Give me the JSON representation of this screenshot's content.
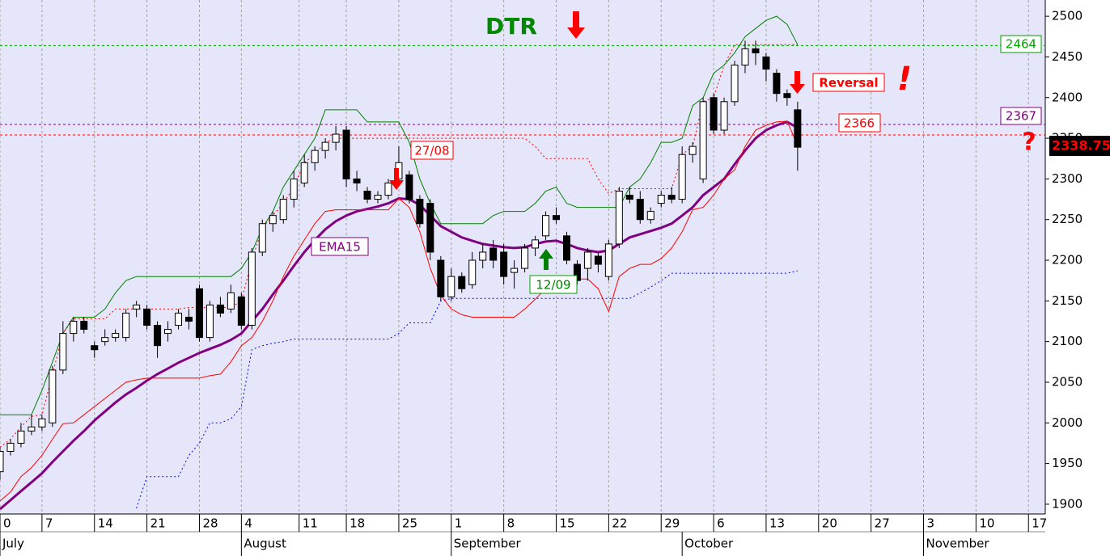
{
  "chart_data": {
    "type": "candlestick",
    "ylim": [
      1888,
      2520
    ],
    "yticks": [
      1900,
      1950,
      2000,
      2050,
      2100,
      2150,
      2200,
      2250,
      2300,
      2350,
      2400,
      2450,
      2500
    ],
    "xlim": [
      0,
      99.6
    ],
    "xticks": [
      {
        "value": 0,
        "label": "0"
      },
      {
        "value": 4,
        "label": "7"
      },
      {
        "value": 9,
        "label": "14"
      },
      {
        "value": 14,
        "label": "21"
      },
      {
        "value": 19,
        "label": "28"
      },
      {
        "value": 23,
        "label": "4"
      },
      {
        "value": 28.5,
        "label": "11"
      },
      {
        "value": 33,
        "label": "18"
      },
      {
        "value": 38,
        "label": "25"
      },
      {
        "value": 43,
        "label": "1"
      },
      {
        "value": 48,
        "label": "8"
      },
      {
        "value": 53,
        "label": "15"
      },
      {
        "value": 58,
        "label": "22"
      },
      {
        "value": 63,
        "label": "29"
      },
      {
        "value": 68,
        "label": "6"
      },
      {
        "value": 73,
        "label": "13"
      },
      {
        "value": 78,
        "label": "20"
      },
      {
        "value": 83,
        "label": "27"
      },
      {
        "value": 88,
        "label": "3"
      },
      {
        "value": 93,
        "label": "10"
      },
      {
        "value": 98,
        "label": "17"
      }
    ],
    "month_ticks": [
      {
        "value": 0,
        "label": "July"
      },
      {
        "value": 23,
        "label": "August"
      },
      {
        "value": 43,
        "label": "September"
      },
      {
        "value": 65,
        "label": "October"
      },
      {
        "value": 88,
        "label": "November"
      }
    ],
    "grid": true,
    "up_color": "#ffffff",
    "down_color": "#000000",
    "x": [
      0,
      1,
      2,
      3,
      4,
      5,
      6,
      7,
      8,
      9,
      10,
      11,
      12,
      13,
      14,
      15,
      16,
      17,
      18,
      19,
      20,
      21,
      22,
      23,
      24,
      25,
      26,
      27,
      28,
      29,
      30,
      31,
      32,
      33,
      34,
      35,
      36,
      37,
      38,
      39,
      40,
      41,
      42,
      43,
      44,
      45,
      46,
      47,
      48,
      49,
      50,
      51,
      52,
      53,
      54,
      55,
      56,
      57,
      58,
      59,
      60,
      61,
      62,
      63,
      64,
      65,
      66,
      67,
      68,
      69,
      70,
      71,
      72,
      73,
      74,
      75,
      76
    ],
    "open": [
      1940,
      1965,
      1975,
      1990,
      1995,
      2000,
      2065,
      2110,
      2125,
      2095,
      2100,
      2105,
      2105,
      2140,
      2140,
      2120,
      2110,
      2120,
      2130,
      2165,
      2105,
      2145,
      2140,
      2155,
      2120,
      2210,
      2245,
      2250,
      2275,
      2295,
      2320,
      2335,
      2345,
      2360,
      2300,
      2285,
      2275,
      2280,
      2300,
      2305,
      2275,
      2270,
      2200,
      2155,
      2180,
      2170,
      2200,
      2215,
      2210,
      2185,
      2190,
      2215,
      2230,
      2255,
      2230,
      2195,
      2190,
      2205,
      2180,
      2220,
      2280,
      2275,
      2250,
      2270,
      2280,
      2275,
      2330,
      2300,
      2400,
      2360,
      2395,
      2440,
      2460,
      2450,
      2430,
      2405,
      2385
    ],
    "high": [
      1970,
      1980,
      2000,
      2010,
      2010,
      2070,
      2125,
      2130,
      2130,
      2100,
      2115,
      2115,
      2140,
      2150,
      2145,
      2125,
      2125,
      2140,
      2140,
      2170,
      2150,
      2155,
      2170,
      2160,
      2215,
      2250,
      2260,
      2280,
      2310,
      2330,
      2340,
      2350,
      2365,
      2365,
      2310,
      2290,
      2285,
      2300,
      2340,
      2310,
      2280,
      2275,
      2205,
      2190,
      2185,
      2210,
      2220,
      2225,
      2220,
      2200,
      2220,
      2230,
      2260,
      2265,
      2235,
      2200,
      2215,
      2210,
      2225,
      2290,
      2290,
      2285,
      2265,
      2285,
      2290,
      2340,
      2345,
      2400,
      2405,
      2400,
      2445,
      2470,
      2470,
      2455,
      2435,
      2410,
      2395
    ],
    "low": [
      1930,
      1960,
      1970,
      1985,
      1990,
      1995,
      2060,
      2100,
      2110,
      2080,
      2095,
      2100,
      2100,
      2130,
      2115,
      2080,
      2100,
      2115,
      2115,
      2100,
      2100,
      2130,
      2135,
      2115,
      2115,
      2205,
      2235,
      2245,
      2265,
      2290,
      2310,
      2325,
      2335,
      2290,
      2285,
      2270,
      2270,
      2275,
      2295,
      2270,
      2240,
      2200,
      2150,
      2150,
      2160,
      2165,
      2190,
      2190,
      2170,
      2165,
      2185,
      2205,
      2225,
      2245,
      2195,
      2170,
      2175,
      2185,
      2175,
      2215,
      2270,
      2245,
      2245,
      2265,
      2270,
      2270,
      2320,
      2295,
      2355,
      2355,
      2390,
      2430,
      2440,
      2420,
      2395,
      2390,
      2310
    ],
    "close": [
      1965,
      1975,
      1990,
      1995,
      2005,
      2065,
      2110,
      2125,
      2115,
      2090,
      2105,
      2110,
      2135,
      2145,
      2120,
      2095,
      2115,
      2135,
      2125,
      2105,
      2145,
      2135,
      2160,
      2120,
      2210,
      2245,
      2255,
      2275,
      2300,
      2320,
      2335,
      2345,
      2355,
      2300,
      2295,
      2275,
      2280,
      2295,
      2320,
      2275,
      2245,
      2210,
      2155,
      2180,
      2165,
      2200,
      2210,
      2200,
      2180,
      2190,
      2215,
      2225,
      2255,
      2250,
      2200,
      2175,
      2210,
      2195,
      2220,
      2285,
      2275,
      2250,
      2260,
      2280,
      2275,
      2330,
      2340,
      2395,
      2360,
      2395,
      2440,
      2460,
      2455,
      2435,
      2405,
      2400,
      2339
    ],
    "series": [
      {
        "name": "EMA15",
        "color": "#800080",
        "width": 3,
        "dash": false,
        "values": [
          1894,
          1905,
          1916,
          1927,
          1938,
          1952,
          1965,
          1978,
          1990,
          2003,
          2014,
          2025,
          2035,
          2043,
          2052,
          2060,
          2067,
          2074,
          2080,
          2086,
          2091,
          2096,
          2102,
          2110,
          2125,
          2140,
          2158,
          2175,
          2193,
          2210,
          2225,
          2238,
          2248,
          2255,
          2260,
          2263,
          2266,
          2270,
          2276,
          2275,
          2268,
          2255,
          2242,
          2235,
          2228,
          2224,
          2220,
          2218,
          2216,
          2215,
          2216,
          2220,
          2223,
          2224,
          2220,
          2215,
          2212,
          2210,
          2212,
          2220,
          2228,
          2232,
          2236,
          2240,
          2245,
          2255,
          2265,
          2280,
          2290,
          2300,
          2318,
          2335,
          2350,
          2360,
          2366,
          2370,
          2363
        ]
      },
      {
        "color": "#008000",
        "width": 1,
        "dash": false,
        "values": [
          2010,
          2010,
          2010,
          2010,
          2040,
          2075,
          2110,
          2130,
          2130,
          2130,
          2140,
          2160,
          2175,
          2180,
          2180,
          2180,
          2180,
          2180,
          2180,
          2180,
          2180,
          2180,
          2180,
          2190,
          2210,
          2240,
          2260,
          2290,
          2310,
          2330,
          2350,
          2385,
          2385,
          2385,
          2385,
          2370,
          2370,
          2370,
          2370,
          2345,
          2300,
          2270,
          2245,
          2245,
          2245,
          2245,
          2245,
          2255,
          2260,
          2260,
          2260,
          2270,
          2285,
          2290,
          2270,
          2265,
          2265,
          2265,
          2265,
          2265,
          2290,
          2300,
          2320,
          2345,
          2345,
          2350,
          2390,
          2400,
          2430,
          2440,
          2455,
          2475,
          2485,
          2495,
          2500,
          2490,
          2465
        ]
      },
      {
        "color": "#ff0000",
        "width": 1,
        "dash": false,
        "values": [
          1904,
          1915,
          1934,
          1945,
          1960,
          1980,
          1999,
          2000,
          2010,
          2020,
          2030,
          2040,
          2050,
          2053,
          2055,
          2055,
          2055,
          2055,
          2055,
          2055,
          2058,
          2060,
          2075,
          2095,
          2105,
          2125,
          2150,
          2180,
          2205,
          2225,
          2245,
          2260,
          2262,
          2262,
          2262,
          2262,
          2262,
          2262,
          2276,
          2265,
          2235,
          2190,
          2157,
          2140,
          2133,
          2130,
          2130,
          2130,
          2130,
          2130,
          2140,
          2152,
          2165,
          2177,
          2177,
          2177,
          2177,
          2165,
          2137,
          2180,
          2190,
          2195,
          2195,
          2202,
          2215,
          2235,
          2262,
          2265,
          2280,
          2300,
          2311,
          2340,
          2360,
          2366,
          2370,
          2371,
          2341
        ]
      },
      {
        "color": "#ff0000",
        "width": 1,
        "dash": true,
        "values": [
          1970,
          1980,
          1995,
          2008,
          2010,
          2060,
          2110,
          2128,
          2128,
          2128,
          2128,
          2140,
          2140,
          2140,
          2140,
          2140,
          2140,
          2140,
          2142,
          2142,
          2142,
          2142,
          2142,
          2150,
          2200,
          2240,
          2255,
          2270,
          2290,
          2320,
          2330,
          2345,
          2350,
          2350,
          2350,
          2350,
          2350,
          2350,
          2350,
          2350,
          2350,
          2350,
          2350,
          2350,
          2350,
          2350,
          2350,
          2350,
          2350,
          2350,
          2350,
          2340,
          2325,
          2325,
          2325,
          2325,
          2325,
          2300,
          2282,
          2288,
          2288,
          2288,
          2288,
          2288,
          2288,
          2330,
          2340,
          2395,
          2400,
          2440,
          2465,
          2465,
          2465,
          2465,
          2465,
          2465,
          2465
        ]
      },
      {
        "color": "#0000ff",
        "width": 1,
        "dash": true,
        "values": [
          null,
          null,
          null,
          null,
          null,
          null,
          null,
          null,
          null,
          null,
          null,
          null,
          null,
          1895,
          1934,
          1934,
          1934,
          1934,
          1960,
          1975,
          2000,
          2000,
          2005,
          2020,
          2090,
          2095,
          2098,
          2100,
          2103,
          2103,
          2103,
          2103,
          2103,
          2103,
          2103,
          2103,
          2103,
          2103,
          2110,
          2123,
          2123,
          2123,
          2150,
          2153,
          2153,
          2153,
          2153,
          2153,
          2153,
          2153,
          2153,
          2153,
          2153,
          2153,
          2153,
          2153,
          2153,
          2153,
          2153,
          2153,
          2153,
          2160,
          2167,
          2175,
          2184,
          2184,
          2184,
          2184,
          2184,
          2184,
          2184,
          2184,
          2184,
          2184,
          2184,
          2184,
          2187
        ]
      }
    ],
    "levels": [
      {
        "value": 2464,
        "color": "#00a000"
      },
      {
        "value": 2367,
        "color": "#800080"
      },
      {
        "value": 2354,
        "color": "#ff0000"
      }
    ],
    "last_price": 2338.75,
    "reversal_level": 2366,
    "annotations": [
      "DTR",
      "27/08",
      "12/09",
      "Reversal",
      "!",
      "?"
    ]
  }
}
